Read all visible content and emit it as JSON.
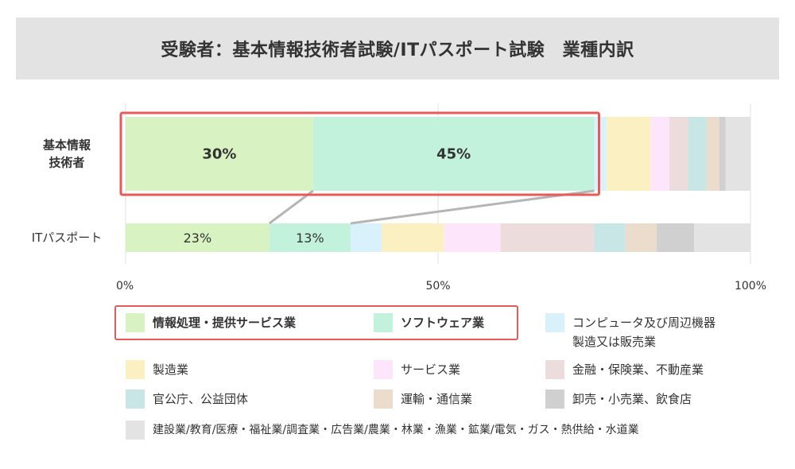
{
  "title": "受験者：基本情報技術者試験/ITパスポート試験　業種内訳",
  "colors": {
    "highlight": "#e85a5a",
    "connector": "#b5b5b5",
    "grid": "#e0e0e0",
    "text": "#333333"
  },
  "chart_data": {
    "type": "bar",
    "orientation": "horizontal",
    "stacked": true,
    "xlim": [
      0,
      100
    ],
    "x_ticks": [
      "0%",
      "50%",
      "100%"
    ],
    "categories": [
      "基本情報\n技術者",
      "ITパスポート"
    ],
    "series": [
      {
        "name": "情報処理・提供サービス業",
        "color": "#d9f2c2",
        "values": [
          30,
          23
        ]
      },
      {
        "name": "ソフトウェア業",
        "color": "#c2f2dc",
        "values": [
          45,
          13
        ]
      },
      {
        "name": "コンピュータ及び周辺機器製造又は販売業",
        "color": "#d9f1fb",
        "values": [
          2,
          5
        ]
      },
      {
        "name": "製造業",
        "color": "#faf0c2",
        "values": [
          7,
          10
        ]
      },
      {
        "name": "サービス業",
        "color": "#fde6fb",
        "values": [
          3,
          9
        ]
      },
      {
        "name": "金融・保険業、不動産業",
        "color": "#ecdcdc",
        "values": [
          3,
          15
        ]
      },
      {
        "name": "官公庁、公益団体",
        "color": "#c8e6e6",
        "values": [
          3,
          5
        ]
      },
      {
        "name": "運輸・通信業",
        "color": "#ecdccc",
        "values": [
          2,
          5
        ]
      },
      {
        "name": "卸売・小売業、飲食店",
        "color": "#d0d0d0",
        "values": [
          1,
          6
        ]
      },
      {
        "name": "建設業/教育/医療・福祉業/調査業・広告業/農業・林業・漁業・鉱業/電気・ガス・熱供給・水道業",
        "color": "#e3e3e3",
        "values": [
          4,
          9
        ]
      }
    ],
    "data_labels": [
      {
        "series": 0,
        "category": 0,
        "text": "30%"
      },
      {
        "series": 1,
        "category": 0,
        "text": "45%"
      },
      {
        "series": 0,
        "category": 1,
        "text": "23%"
      },
      {
        "series": 1,
        "category": 1,
        "text": "13%"
      }
    ],
    "highlighted_series": [
      "情報処理・提供サービス業",
      "ソフトウェア業"
    ],
    "grid": true
  },
  "legend": {
    "items": [
      {
        "label": "情報処理・提供サービス業",
        "color": "#d9f2c2"
      },
      {
        "label": "ソフトウェア業",
        "color": "#c2f2dc"
      },
      {
        "label_lines": [
          "コンピュータ及び周辺機器",
          "製造又は販売業"
        ],
        "color": "#d9f1fb"
      },
      {
        "label": "製造業",
        "color": "#faf0c2"
      },
      {
        "label": "サービス業",
        "color": "#fde6fb"
      },
      {
        "label": "金融・保険業、不動産業",
        "color": "#ecdcdc"
      },
      {
        "label": "官公庁、公益団体",
        "color": "#c8e6e6"
      },
      {
        "label": "運輸・通信業",
        "color": "#ecdccc"
      },
      {
        "label": "卸売・小売業、飲食店",
        "color": "#d0d0d0"
      },
      {
        "label": "建設業/教育/医療・福祉業/調査業・広告業/農業・林業・漁業・鉱業/電気・ガス・熱供給・水道業",
        "color": "#e3e3e3"
      }
    ]
  }
}
